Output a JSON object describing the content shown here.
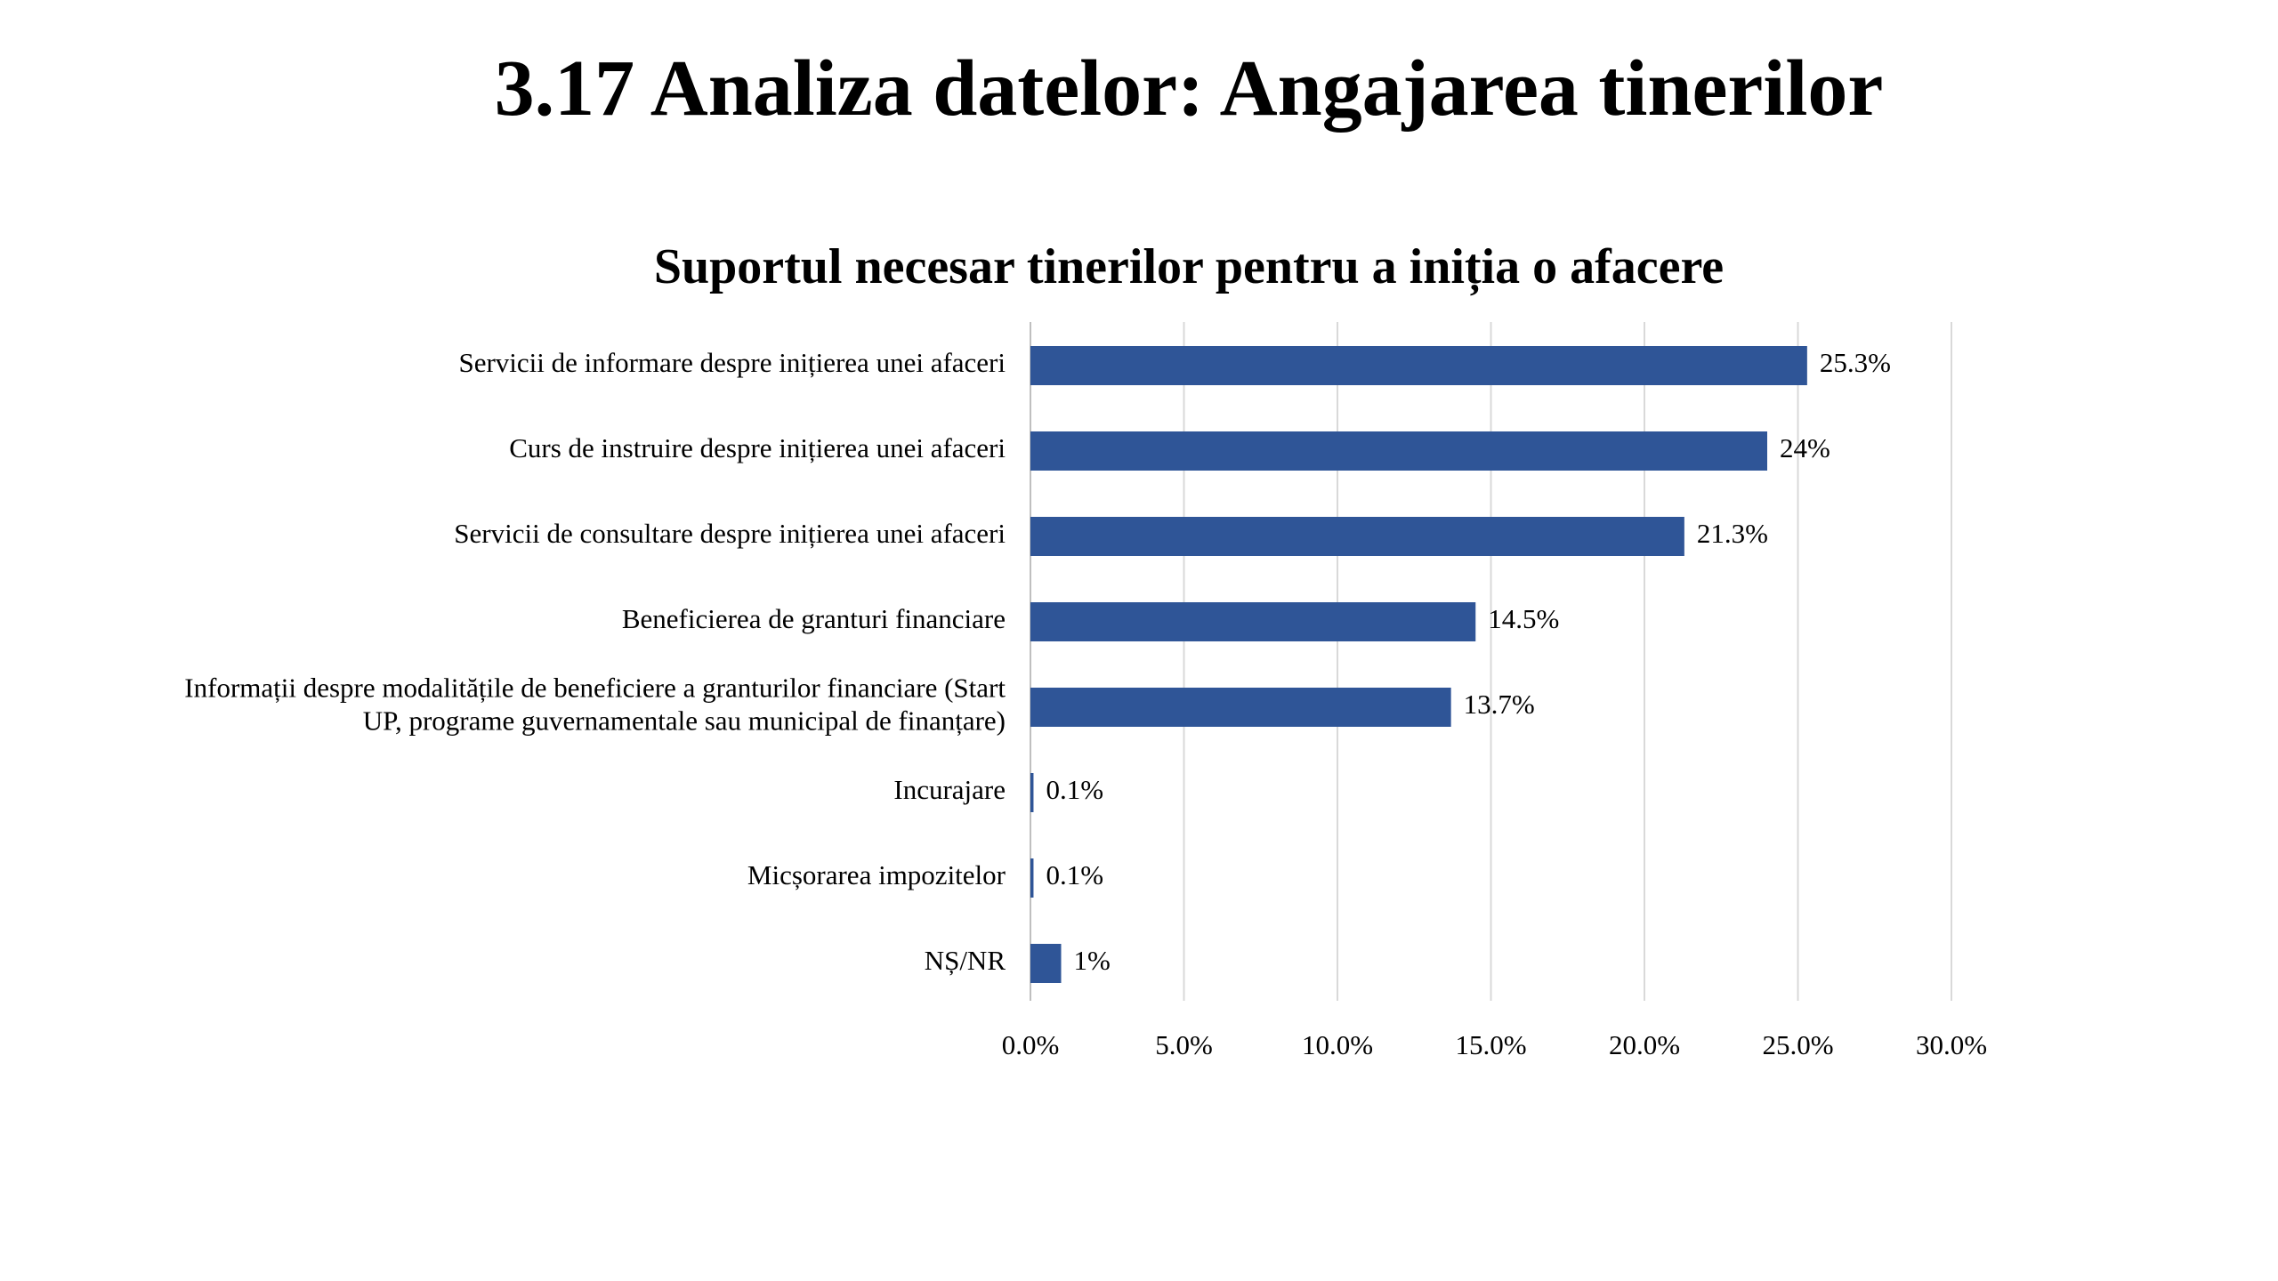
{
  "slide": {
    "title": "3.17 Analiza datelor: Angajarea tinerilor"
  },
  "chart_data": {
    "type": "bar",
    "orientation": "horizontal",
    "title": "Suportul necesar tinerilor pentru a iniția o afacere",
    "xlabel": "",
    "ylabel": "",
    "xlim": [
      0,
      30
    ],
    "grid": true,
    "legend": "none",
    "bar_color": "#2F5597",
    "categories": [
      [
        "Servicii de informare despre inițierea unei afaceri"
      ],
      [
        "Curs de instruire despre inițierea unei afaceri"
      ],
      [
        "Servicii de consultare despre inițierea unei afaceri"
      ],
      [
        "Beneficierea de granturi financiare"
      ],
      [
        "Informații despre modalitățile de beneficiere a granturilor financiare (Start",
        "UP, programe guvernamentale sau municipal de finanțare)"
      ],
      [
        "Incurajare"
      ],
      [
        "Micșorarea impozitelor"
      ],
      [
        "NȘ/NR"
      ]
    ],
    "values": [
      25.3,
      24,
      21.3,
      14.5,
      13.7,
      0.1,
      0.1,
      1
    ],
    "data_labels": [
      "25.3%",
      "24%",
      "21.3%",
      "14.5%",
      "13.7%",
      "0.1%",
      "0.1%",
      "1%"
    ],
    "ticks": [
      0,
      5,
      10,
      15,
      20,
      25,
      30
    ],
    "tick_labels": [
      "0.0%",
      "5.0%",
      "10.0%",
      "15.0%",
      "20.0%",
      "25.0%",
      "30.0%"
    ]
  }
}
